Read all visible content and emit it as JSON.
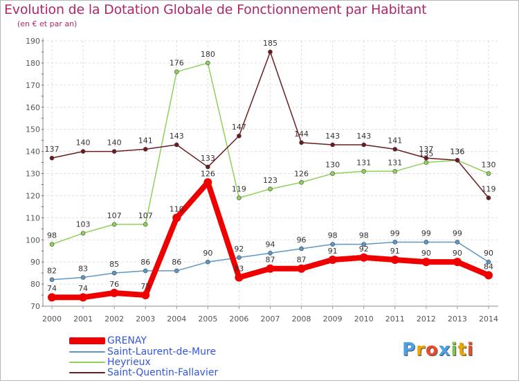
{
  "chart_data": {
    "type": "line",
    "title": "Evolution de la Dotation Globale de Fonctionnement par Habitant",
    "subtitle": "(en € et par an)",
    "xlabel": "",
    "ylabel": "",
    "x": [
      "2000",
      "2001",
      "2002",
      "2003",
      "2004",
      "2005",
      "2006",
      "2007",
      "2008",
      "2009",
      "2010",
      "2011",
      "2012",
      "2013",
      "2014"
    ],
    "ylim": [
      70,
      190
    ],
    "yticks": [
      70,
      80,
      90,
      100,
      110,
      120,
      130,
      140,
      150,
      160,
      170,
      180,
      190
    ],
    "grid": true,
    "legend_position": "bottom-left",
    "series": [
      {
        "name": "GRENAY",
        "color": "#ee0000",
        "values": [
          74,
          74,
          76,
          75,
          110,
          126,
          83,
          87,
          87,
          91,
          92,
          91,
          90,
          90,
          84
        ]
      },
      {
        "name": "Saint-Laurent-de-Mure",
        "color": "#5c97c6",
        "values": [
          82,
          83,
          85,
          86,
          86,
          90,
          92,
          94,
          96,
          98,
          98,
          99,
          99,
          99,
          90
        ]
      },
      {
        "name": "Heyrieux",
        "color": "#90d05a",
        "values": [
          98,
          103,
          107,
          107,
          176,
          180,
          119,
          123,
          126,
          130,
          131,
          131,
          135,
          136,
          130
        ]
      },
      {
        "name": "Saint-Quentin-Fallavier",
        "color": "#6b1b1f",
        "values": [
          137,
          140,
          140,
          141,
          143,
          133,
          147,
          185,
          144,
          143,
          143,
          141,
          137,
          136,
          119
        ]
      }
    ]
  },
  "brand": {
    "letters": [
      "P",
      "r",
      "o",
      "x",
      "i",
      "t",
      "i"
    ],
    "colors": [
      "#4aa2e6",
      "#f0a400",
      "#e84c2c",
      "#4aa2e6",
      "#7cc34a",
      "#f0a400",
      "#e84c2c"
    ]
  }
}
